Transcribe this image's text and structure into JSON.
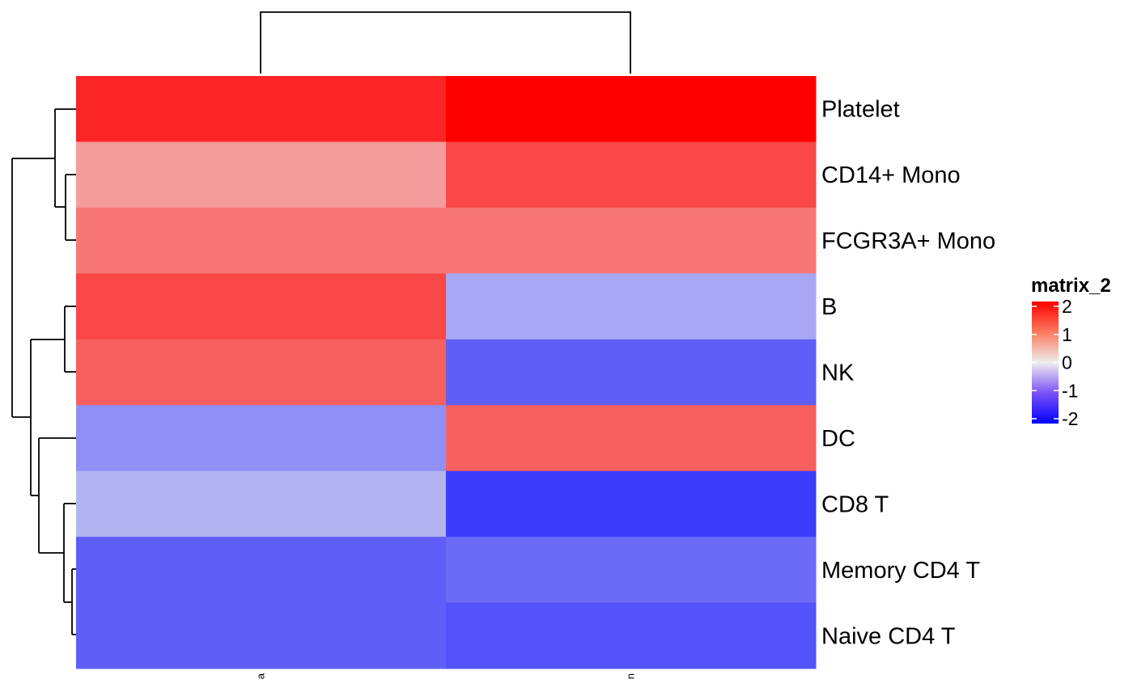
{
  "chart_data": {
    "type": "heatmap",
    "rows": [
      "Platelet",
      "CD14+ Mono",
      "FCGR3A+ Mono",
      "B",
      "NK",
      "DC",
      "CD8 T",
      "Memory CD4 T",
      "Naive CD4 T"
    ],
    "columns": [
      "a",
      "n"
    ],
    "values": [
      [
        1.7,
        2.0
      ],
      [
        0.7,
        1.4
      ],
      [
        1.0,
        1.0
      ],
      [
        1.4,
        -0.6
      ],
      [
        1.2,
        -1.2
      ],
      [
        -0.8,
        1.2
      ],
      [
        -0.5,
        -1.5
      ],
      [
        -1.2,
        -1.1
      ],
      [
        -1.2,
        -1.3
      ]
    ],
    "legend": {
      "title": "matrix_2",
      "ticks": [
        2,
        1,
        0,
        -1,
        -2
      ],
      "tick_labels": [
        "2",
        "1",
        "0",
        "-1",
        "-2"
      ],
      "range": [
        -2,
        2
      ],
      "placement": "right"
    },
    "color_scale": {
      "low": "#0000ff",
      "mid": "#eeeeee",
      "high": "#ff0000"
    },
    "dendrogram": {
      "rows": true,
      "columns": true
    },
    "title": "",
    "xlabel": "",
    "ylabel": ""
  }
}
